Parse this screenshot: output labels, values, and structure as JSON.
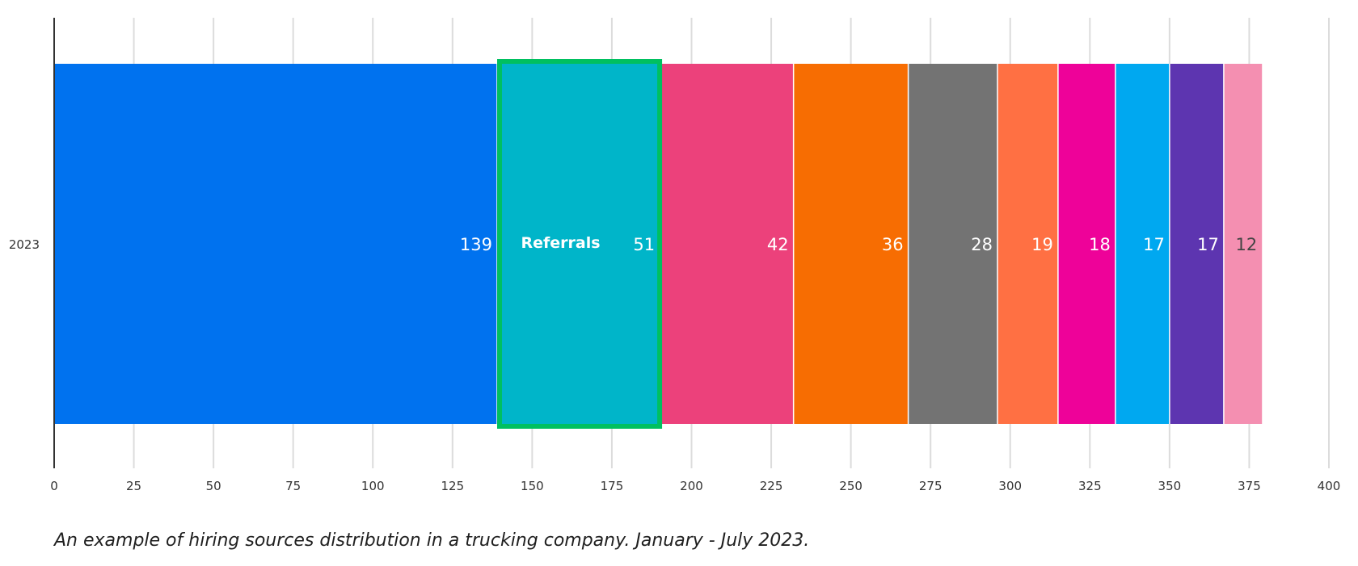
{
  "chart_data": {
    "type": "bar",
    "orientation": "horizontal",
    "stacked": true,
    "categories": [
      "2023"
    ],
    "series": [
      {
        "values": [
          139
        ],
        "color": "#0072ef",
        "label_color": "#ffffff"
      },
      {
        "values": [
          51
        ],
        "color": "#00b5c9",
        "label_color": "#ffffff"
      },
      {
        "values": [
          42
        ],
        "color": "#ec417b",
        "label_color": "#ffffff"
      },
      {
        "values": [
          36
        ],
        "color": "#f76d02",
        "label_color": "#ffffff"
      },
      {
        "values": [
          28
        ],
        "color": "#737373",
        "label_color": "#ffffff"
      },
      {
        "values": [
          19
        ],
        "color": "#ff7043",
        "label_color": "#ffffff"
      },
      {
        "values": [
          18
        ],
        "color": "#ee0299",
        "label_color": "#ffffff"
      },
      {
        "values": [
          17
        ],
        "color": "#00a8f0",
        "label_color": "#ffffff"
      },
      {
        "values": [
          17
        ],
        "color": "#5d35b0",
        "label_color": "#ffffff"
      },
      {
        "values": [
          12
        ],
        "color": "#f48fb1",
        "label_color": "#444444"
      }
    ],
    "xlim": [
      0,
      400
    ],
    "x_ticks": [
      0,
      25,
      50,
      75,
      100,
      125,
      150,
      175,
      200,
      225,
      250,
      275,
      300,
      325,
      350,
      375,
      400
    ],
    "grid": true,
    "legend": "none",
    "annotation": {
      "text": "Referrals",
      "highlight_series_index": 1,
      "border_color": "#00c060"
    },
    "xlabel": "",
    "ylabel": ""
  },
  "caption": "An example of hiring sources distribution in a trucking company. January - July 2023."
}
